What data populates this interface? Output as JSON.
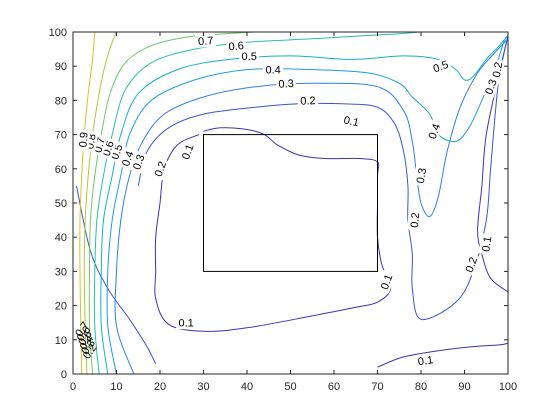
{
  "chart_data": {
    "type": "contour",
    "xlim": [
      0,
      100
    ],
    "ylim": [
      0,
      100
    ],
    "x_ticks": [
      "0",
      "10",
      "20",
      "30",
      "40",
      "50",
      "60",
      "70",
      "80",
      "90",
      "100"
    ],
    "y_ticks": [
      "0",
      "10",
      "20",
      "30",
      "40",
      "50",
      "60",
      "70",
      "80",
      "90",
      "100"
    ],
    "grid": false,
    "obstacle": {
      "x": [
        30,
        70
      ],
      "y": [
        30,
        70
      ],
      "color": "#000000"
    },
    "levels": [
      {
        "value": 0.1,
        "label": "0.1",
        "color": "#3a34b0",
        "segments": [
          [
            [
              29,
              70
            ],
            [
              24,
              67
            ],
            [
              21,
              60
            ],
            [
              20,
              50
            ],
            [
              19,
              40
            ],
            [
              19,
              30
            ],
            [
              19,
              22
            ],
            [
              22,
              14.5
            ],
            [
              30,
              12.5
            ],
            [
              40,
              13.5
            ],
            [
              55,
              17
            ],
            [
              65,
              19.5
            ],
            [
              70,
              21
            ],
            [
              73,
              25
            ],
            [
              71,
              32
            ],
            [
              70,
              40
            ],
            [
              70,
              50
            ],
            [
              70,
              58
            ],
            [
              70,
              62
            ],
            [
              66,
              63
            ],
            [
              58,
              63
            ],
            [
              52,
              64
            ],
            [
              47,
              67
            ],
            [
              44,
              70
            ],
            [
              40,
              71.5
            ],
            [
              34,
              72
            ],
            [
              30,
              71
            ]
          ],
          [
            [
              70,
              2
            ],
            [
              76,
              5
            ],
            [
              85,
              7
            ],
            [
              92,
              8
            ],
            [
              98,
              8.5
            ],
            [
              100,
              9
            ]
          ],
          [
            [
              100,
              99
            ],
            [
              98,
              88
            ],
            [
              95,
              70
            ],
            [
              94,
              55
            ],
            [
              93,
              42
            ],
            [
              94,
              35
            ],
            [
              96,
              28
            ],
            [
              100,
              24
            ]
          ]
        ],
        "labels": [
          {
            "x": 26,
            "y": 15,
            "text": "0.1",
            "angle": 0
          },
          {
            "x": 64,
            "y": 74,
            "text": "0.1",
            "angle": 12
          },
          {
            "x": 72,
            "y": 27,
            "text": "0.1",
            "angle": -70
          },
          {
            "x": 81,
            "y": 4,
            "text": "0.1",
            "angle": -8
          },
          {
            "x": 95,
            "y": 38,
            "text": "0.1",
            "angle": -82
          },
          {
            "x": 26.3,
            "y": 65,
            "text": "0.1",
            "angle": -70
          }
        ]
      },
      {
        "value": 0.2,
        "label": "0.2",
        "color": "#3d54d0",
        "segments": [
          [
            [
              0.8,
              55
            ],
            [
              4,
              36
            ],
            [
              8,
              25
            ],
            [
              13,
              16
            ],
            [
              17,
              8
            ],
            [
              19,
              3
            ]
          ],
          [
            [
              15,
              55
            ],
            [
              17,
              65
            ],
            [
              22,
              72
            ],
            [
              30,
              76
            ],
            [
              42,
              78
            ],
            [
              52,
              79
            ],
            [
              62,
              79
            ],
            [
              70,
              78
            ],
            [
              74,
              73
            ],
            [
              76,
              65
            ],
            [
              77,
              55
            ],
            [
              77,
              45
            ],
            [
              78,
              35
            ],
            [
              78,
              25
            ],
            [
              80,
              16
            ],
            [
              88,
              21
            ],
            [
              92,
              30
            ],
            [
              95,
              45
            ],
            [
              96,
              60
            ],
            [
              97,
              75
            ],
            [
              98,
              87
            ],
            [
              100,
              99
            ]
          ]
        ],
        "labels": [
          {
            "x": 20,
            "y": 60,
            "text": "0.2",
            "angle": -70
          },
          {
            "x": 54,
            "y": 80,
            "text": "0.2",
            "angle": -3
          },
          {
            "x": 78.5,
            "y": 45,
            "text": "0.2",
            "angle": -85
          },
          {
            "x": 91.5,
            "y": 32,
            "text": "0.2",
            "angle": -70
          },
          {
            "x": 97.5,
            "y": 89,
            "text": "0.2",
            "angle": -80
          }
        ]
      },
      {
        "value": 0.3,
        "label": "0.3",
        "color": "#2f7fe8",
        "segments": [
          [
            [
              14,
              0
            ],
            [
              10,
              14
            ],
            [
              10,
              30
            ],
            [
              11,
              45
            ],
            [
              13,
              58
            ],
            [
              16,
              68
            ],
            [
              21,
              76
            ],
            [
              30,
              81
            ],
            [
              42,
              84
            ],
            [
              55,
              85
            ],
            [
              70,
              84
            ],
            [
              76,
              77
            ],
            [
              78,
              68
            ],
            [
              79,
              58
            ],
            [
              80,
              50
            ],
            [
              82,
              46
            ],
            [
              84,
              52
            ],
            [
              86,
              65
            ],
            [
              89,
              78
            ],
            [
              93,
              88
            ],
            [
              97,
              94
            ],
            [
              100,
              98
            ]
          ]
        ],
        "labels": [
          {
            "x": 15,
            "y": 62,
            "text": "0.3",
            "angle": -70
          },
          {
            "x": 49,
            "y": 85,
            "text": "0.3",
            "angle": -3
          },
          {
            "x": 80,
            "y": 58,
            "text": "0.3",
            "angle": -80
          },
          {
            "x": 96,
            "y": 84,
            "text": "0.3",
            "angle": -70
          }
        ]
      },
      {
        "value": 0.4,
        "label": "0.4",
        "color": "#1d9edd",
        "segments": [
          [
            [
              10,
              0
            ],
            [
              8,
              14
            ],
            [
              8,
              30
            ],
            [
              9,
              45
            ],
            [
              11,
              58
            ],
            [
              13,
              70
            ],
            [
              18,
              80
            ],
            [
              28,
              86
            ],
            [
              40,
              89
            ],
            [
              55,
              89
            ],
            [
              68,
              88
            ],
            [
              75,
              85
            ],
            [
              78,
              81
            ],
            [
              82,
              76
            ],
            [
              84,
              70
            ],
            [
              88,
              68
            ],
            [
              91,
              72
            ],
            [
              94,
              80
            ],
            [
              97,
              89
            ],
            [
              99,
              97
            ],
            [
              100,
              99
            ]
          ]
        ],
        "labels": [
          {
            "x": 12.5,
            "y": 63,
            "text": "0.4",
            "angle": -70
          },
          {
            "x": 46,
            "y": 89,
            "text": "0.4",
            "angle": 0
          },
          {
            "x": 83,
            "y": 71,
            "text": "0.4",
            "angle": -70
          }
        ]
      },
      {
        "value": 0.5,
        "label": "0.5",
        "color": "#14b2c0",
        "segments": [
          [
            [
              8,
              0
            ],
            [
              6.5,
              14
            ],
            [
              6.5,
              30
            ],
            [
              7,
              45
            ],
            [
              9,
              58
            ],
            [
              11,
              70
            ],
            [
              15,
              82
            ],
            [
              24,
              89
            ],
            [
              36,
              92
            ],
            [
              50,
              93
            ],
            [
              64,
              92
            ],
            [
              76,
              93
            ],
            [
              84,
              92
            ],
            [
              88,
              89
            ],
            [
              90,
              86
            ],
            [
              92,
              87
            ],
            [
              95,
              92
            ],
            [
              98,
              96
            ],
            [
              100,
              99
            ]
          ]
        ],
        "labels": [
          {
            "x": 10,
            "y": 65,
            "text": "0.5",
            "angle": -70
          },
          {
            "x": 40.5,
            "y": 93,
            "text": "0.5",
            "angle": 0
          },
          {
            "x": 84.5,
            "y": 90,
            "text": "0.5",
            "angle": -20
          }
        ]
      },
      {
        "value": 0.6,
        "label": "0.6",
        "color": "#25c2a0",
        "segments": [
          [
            [
              6,
              0
            ],
            [
              5,
              14
            ],
            [
              5,
              30
            ],
            [
              5.5,
              45
            ],
            [
              7,
              58
            ],
            [
              9,
              70
            ],
            [
              12,
              83
            ],
            [
              18,
              91
            ],
            [
              28,
              95
            ],
            [
              40,
              97
            ],
            [
              55,
              98
            ],
            [
              68,
              99
            ],
            [
              75,
              99.5
            ],
            [
              80,
              100
            ]
          ]
        ],
        "labels": [
          {
            "x": 8,
            "y": 66,
            "text": "0.6",
            "angle": -72
          },
          {
            "x": 37.5,
            "y": 96,
            "text": "0.6",
            "angle": -5
          }
        ]
      },
      {
        "value": 0.7,
        "label": "0.7",
        "color": "#6fc868",
        "segments": [
          [
            [
              4.5,
              0
            ],
            [
              3.8,
              14
            ],
            [
              3.8,
              30
            ],
            [
              4,
              45
            ],
            [
              5,
              58
            ],
            [
              6.5,
              70
            ],
            [
              8.5,
              82
            ],
            [
              12,
              91
            ],
            [
              18,
              96
            ],
            [
              26,
              98.5
            ],
            [
              35,
              99.5
            ],
            [
              42,
              100
            ]
          ]
        ],
        "labels": [
          {
            "x": 6,
            "y": 67,
            "text": "0.7",
            "angle": -75
          },
          {
            "x": 30.5,
            "y": 97.5,
            "text": "0.7",
            "angle": -5
          }
        ]
      },
      {
        "value": 0.8,
        "label": "0.8",
        "color": "#b4c63a",
        "segments": [
          [
            [
              3.2,
              0
            ],
            [
              2.8,
              14
            ],
            [
              2.6,
              30
            ],
            [
              2.8,
              45
            ],
            [
              3.5,
              58
            ],
            [
              4.5,
              70
            ],
            [
              6,
              82
            ],
            [
              7.5,
              91
            ],
            [
              9,
              97
            ],
            [
              10,
              100
            ]
          ]
        ],
        "labels": [
          {
            "x": 4,
            "y": 68,
            "text": "0.8",
            "angle": -80
          }
        ]
      },
      {
        "value": 0.9,
        "label": "0.9",
        "color": "#e0be2a",
        "segments": [
          [
            [
              2,
              0
            ],
            [
              1.8,
              14
            ],
            [
              1.6,
              30
            ],
            [
              1.6,
              45
            ],
            [
              2,
              58
            ],
            [
              2.6,
              70
            ],
            [
              3.5,
              82
            ],
            [
              4.5,
              92
            ],
            [
              5,
              100
            ]
          ]
        ],
        "labels": [
          {
            "x": 2.3,
            "y": 68.5,
            "text": "0.9",
            "angle": -85
          }
        ]
      }
    ],
    "corner_labels": [
      "0.7",
      "0.6",
      "0.5",
      "0.4",
      "0.3",
      "0.2"
    ]
  }
}
